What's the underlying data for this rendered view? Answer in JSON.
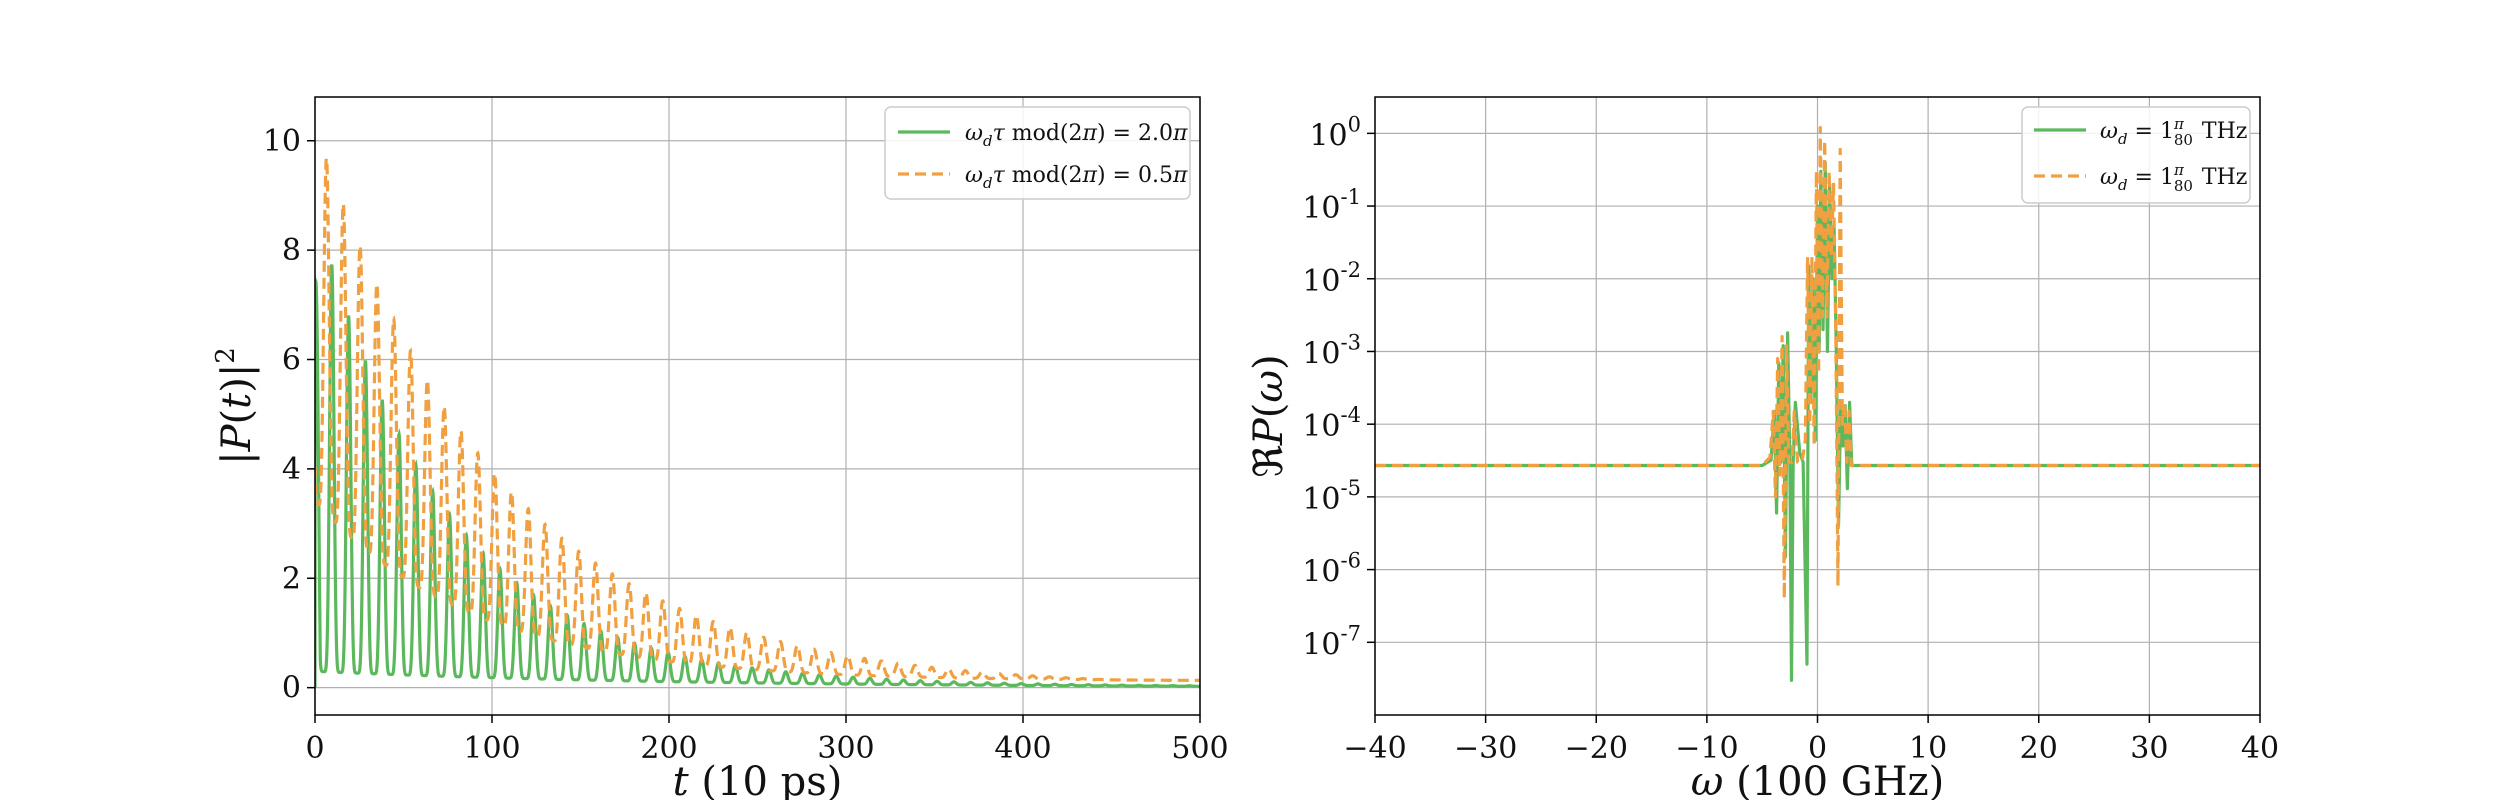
{
  "chart_data": [
    {
      "type": "line",
      "title": "",
      "xlabel": "t (10 ps)",
      "ylabel": "|P(t)|²",
      "xlim": [
        0,
        500
      ],
      "ylim": [
        -0.5,
        10.8
      ],
      "xticks": [
        0,
        100,
        200,
        300,
        400,
        500
      ],
      "xtick_labels": [
        "0",
        "100",
        "200",
        "300",
        "400",
        "500"
      ],
      "yticks": [
        0,
        2,
        4,
        6,
        8,
        10
      ],
      "ytick_labels": [
        "0",
        "2",
        "4",
        "6",
        "8",
        "10"
      ],
      "grid": true,
      "legend_position": "top-right",
      "series": [
        {
          "name": "ω_d τ mod(2π) = 2.0π",
          "color": "#5cb85c",
          "style": "solid",
          "envelope": {
            "peak": 8.5,
            "decay_time": 72,
            "baseline": 0.3,
            "period": 9.5
          }
        },
        {
          "name": "ω_d τ mod(2π) = 0.5π",
          "color": "#f0a040",
          "style": "dashed",
          "envelope": {
            "peak": 10.3,
            "decay_time": 105,
            "baseline": 3.3,
            "baseline_decay_time": 90,
            "period": 9.5
          }
        }
      ]
    },
    {
      "type": "line",
      "title": "",
      "xlabel": "ω (100 GHz)",
      "ylabel": "ℜP(ω)",
      "xlim": [
        -40,
        40
      ],
      "ylim_log10": [
        -8.0,
        0.5
      ],
      "xticks": [
        -40,
        -30,
        -20,
        -10,
        0,
        10,
        20,
        30,
        40
      ],
      "xtick_labels": [
        "−40",
        "−30",
        "−20",
        "−10",
        "0",
        "10",
        "20",
        "30",
        "40"
      ],
      "yticks_log10": [
        0,
        -1,
        -2,
        -3,
        -4,
        -5,
        -6,
        -7
      ],
      "ytick_labels": [
        {
          "base": "10",
          "exp": "0"
        },
        {
          "base": "10",
          "exp": "-1"
        },
        {
          "base": "10",
          "exp": "-2"
        },
        {
          "base": "10",
          "exp": "-3"
        },
        {
          "base": "10",
          "exp": "-4"
        },
        {
          "base": "10",
          "exp": "-5"
        },
        {
          "base": "10",
          "exp": "-6"
        },
        {
          "base": "10",
          "exp": "-7"
        }
      ],
      "y_scale": "log",
      "grid": true,
      "legend_position": "top-right",
      "series": [
        {
          "name": "ω_d = 1π/80 THz",
          "color": "#5cb85c",
          "style": "solid",
          "baseline": 2.7e-05,
          "points": [
            [
              -40,
              2.7e-05
            ],
            [
              -5,
              2.7e-05
            ],
            [
              -4.2,
              3.2e-05
            ],
            [
              -3.9,
              0.00015
            ],
            [
              -3.7,
              6e-06
            ],
            [
              -3.5,
              0.0007
            ],
            [
              -3.3,
              3e-05
            ],
            [
              -3.1,
              0.0012
            ],
            [
              -2.9,
              1.5e-06
            ],
            [
              -2.7,
              0.0018
            ],
            [
              -2.5,
              3e-05
            ],
            [
              -2.35,
              3e-08
            ],
            [
              -2.2,
              3e-05
            ],
            [
              -2.0,
              0.0002
            ],
            [
              -1.6,
              4e-05
            ],
            [
              -1.3,
              3e-05
            ],
            [
              -0.95,
              5e-08
            ],
            [
              -0.8,
              0.015
            ],
            [
              -0.6,
              0.0002
            ],
            [
              -0.4,
              0.01
            ],
            [
              -0.2,
              6e-05
            ],
            [
              0.0,
              0.1
            ],
            [
              0.15,
              0.001
            ],
            [
              0.3,
              0.3
            ],
            [
              0.5,
              0.002
            ],
            [
              0.7,
              0.4
            ],
            [
              0.9,
              0.001
            ],
            [
              1.1,
              0.2
            ],
            [
              1.3,
              0.01
            ],
            [
              1.5,
              0.05
            ],
            [
              1.7,
              0.001
            ],
            [
              1.9,
              4e-06
            ],
            [
              2.1,
              0.0002
            ],
            [
              2.3,
              5e-05
            ],
            [
              2.5,
              0.00018
            ],
            [
              2.7,
              1.3e-05
            ],
            [
              2.9,
              0.0002
            ],
            [
              3.1,
              2.7e-05
            ],
            [
              40,
              2.7e-05
            ]
          ]
        },
        {
          "name": "ω_d = 1π/80 THz",
          "color": "#f0a040",
          "style": "dashed",
          "baseline": 2.7e-05,
          "points": [
            [
              -40,
              2.7e-05
            ],
            [
              -5,
              2.7e-05
            ],
            [
              -4.3,
              3.5e-05
            ],
            [
              -4.0,
              0.00015
            ],
            [
              -3.8,
              1e-05
            ],
            [
              -3.6,
              0.0008
            ],
            [
              -3.4,
              2e-05
            ],
            [
              -3.2,
              0.0016
            ],
            [
              -3.0,
              4e-07
            ],
            [
              -2.8,
              0.0012
            ],
            [
              -2.6,
              3e-05
            ],
            [
              -2.3,
              3e-05
            ],
            [
              -2.1,
              0.00015
            ],
            [
              -1.8,
              3e-05
            ],
            [
              -1.4,
              3e-05
            ],
            [
              -1.1,
              6e-05
            ],
            [
              -0.9,
              0.02
            ],
            [
              -0.7,
              0.0001
            ],
            [
              -0.5,
              0.02
            ],
            [
              -0.3,
              5e-05
            ],
            [
              -0.1,
              0.3
            ],
            [
              0.1,
              0.0005
            ],
            [
              0.25,
              1.2
            ],
            [
              0.45,
              0.003
            ],
            [
              0.65,
              0.8
            ],
            [
              0.85,
              0.003
            ],
            [
              1.05,
              0.3
            ],
            [
              1.25,
              0.02
            ],
            [
              1.45,
              0.2
            ],
            [
              1.65,
              0.002
            ],
            [
              1.85,
              6e-07
            ],
            [
              2.05,
              0.6
            ],
            [
              2.25,
              0.0001
            ],
            [
              2.45,
              0.0002
            ],
            [
              2.65,
              3e-05
            ],
            [
              2.85,
              0.00015
            ],
            [
              3.05,
              2.7e-05
            ],
            [
              40,
              2.7e-05
            ]
          ]
        }
      ]
    }
  ]
}
